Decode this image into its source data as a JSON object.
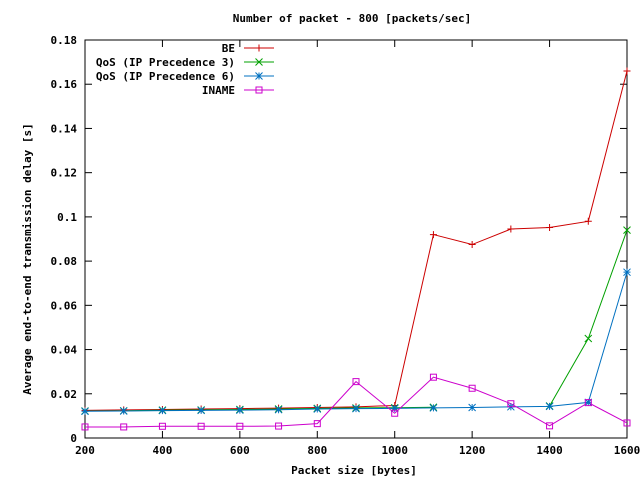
{
  "chart_data": {
    "type": "line",
    "title": "Number of packet - 800 [packets/sec]",
    "xlabel": "Packet size [bytes]",
    "ylabel": "Average end-to-end transmission delay [s]",
    "xlim": [
      200,
      1600
    ],
    "ylim": [
      0,
      0.18
    ],
    "xticks": [
      200,
      400,
      600,
      800,
      1000,
      1200,
      1400,
      1600
    ],
    "yticks": [
      0,
      0.02,
      0.04,
      0.06,
      0.08,
      0.1,
      0.12,
      0.14,
      0.16,
      0.18
    ],
    "xtick_labels": [
      "200",
      "400",
      "600",
      "800",
      "1000",
      "1200",
      "1400",
      "1600"
    ],
    "ytick_labels": [
      "0",
      "0.02",
      "0.04",
      "0.06",
      "0.08",
      "0.1",
      "0.12",
      "0.14",
      "0.16",
      "0.18"
    ],
    "grid": false,
    "legend_position": "top-right",
    "x": [
      200,
      300,
      400,
      500,
      600,
      700,
      800,
      900,
      1000,
      1100,
      1200,
      1300,
      1400,
      1500,
      1600
    ],
    "series": [
      {
        "name": "BE",
        "color": "#cc0000",
        "marker": "plus",
        "values": [
          0.0125,
          0.0127,
          0.0129,
          0.0131,
          0.0133,
          0.0135,
          0.0138,
          0.0141,
          0.0147,
          0.092,
          0.0875,
          0.0945,
          0.0952,
          0.098,
          0.166
        ]
      },
      {
        "name": "QoS (IP Precedence 3)",
        "color": "#00a000",
        "marker": "cross",
        "values": [
          0.0122,
          0.0123,
          0.0126,
          0.0127,
          0.0129,
          0.0131,
          0.0134,
          0.0136,
          0.0137,
          0.0139,
          null,
          null,
          0.0145,
          0.045,
          0.094
        ]
      },
      {
        "name": "QoS (IP Precedence 6)",
        "color": "#0070c0",
        "marker": "star",
        "values": [
          0.0121,
          0.0122,
          0.0124,
          0.0125,
          0.0126,
          0.0128,
          0.0131,
          0.0133,
          0.0134,
          0.0136,
          0.0138,
          0.0141,
          0.0143,
          0.0161,
          0.075
        ]
      },
      {
        "name": "INAME",
        "color": "#cc00cc",
        "marker": "square",
        "values": [
          0.005,
          0.005,
          0.0053,
          0.0053,
          0.0053,
          0.0054,
          0.0065,
          0.0255,
          0.0112,
          0.0275,
          0.0225,
          0.0155,
          0.0055,
          0.016,
          0.0068
        ]
      }
    ]
  }
}
